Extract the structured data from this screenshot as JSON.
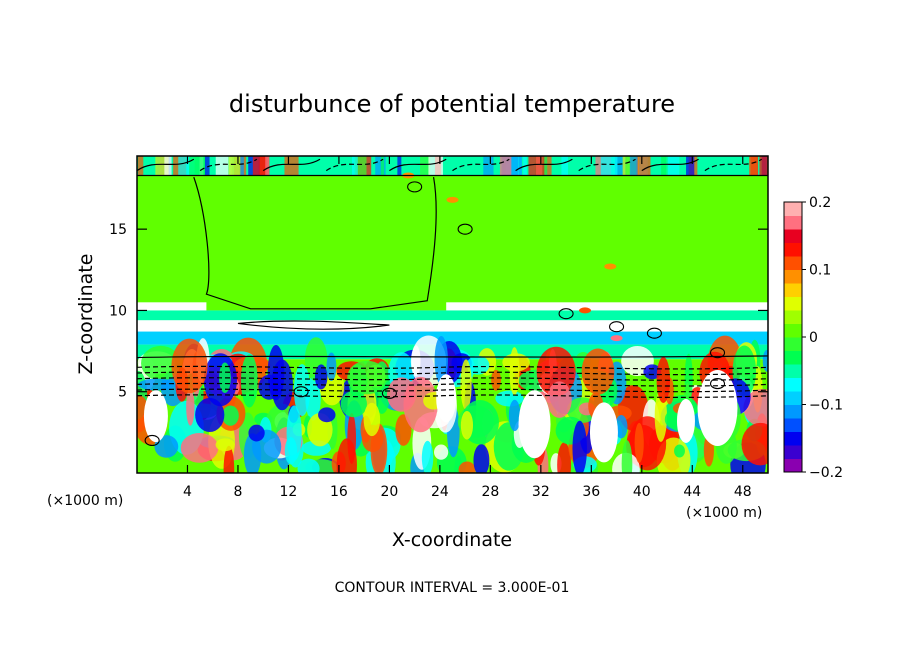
{
  "chart_data": {
    "type": "heatmap",
    "title": "disturbunce of potential temperature",
    "xlabel": "X-coordinate",
    "ylabel": "Z-coordinate",
    "x_unit": "(×1000 m)",
    "contour_note": "CONTOUR INTERVAL = 3.000E-01",
    "xlim": [
      0,
      50
    ],
    "ylim": [
      0,
      19.5
    ],
    "x_ticks": [
      4,
      8,
      12,
      16,
      20,
      24,
      28,
      32,
      36,
      40,
      44,
      48
    ],
    "y_ticks": [
      5,
      10,
      15
    ],
    "colorbar": {
      "range": [
        -0.2,
        0.2
      ],
      "ticks": [
        0.2,
        0.1,
        0,
        -0.1,
        -0.2
      ],
      "tick_labels": [
        "0.2",
        "0.1",
        "0",
        "−0.1",
        "−0.2"
      ],
      "colors": [
        "#8a00b0",
        "#3a00d0",
        "#0000f0",
        "#0050ff",
        "#0099ff",
        "#00d0ff",
        "#00ffff",
        "#00ffaa",
        "#00ff50",
        "#30ff30",
        "#60ff00",
        "#a0ff00",
        "#e0ff00",
        "#ffd000",
        "#ff9000",
        "#ff5000",
        "#ff1000",
        "#e80020",
        "#ff7080",
        "#ffb0b0"
      ]
    },
    "field_regions": [
      {
        "name": "upper-layer-band",
        "x": [
          0,
          50
        ],
        "z": [
          18.3,
          19.5
        ],
        "value": -0.05
      },
      {
        "name": "upper-green",
        "x": [
          0,
          50
        ],
        "z": [
          10.5,
          18.3
        ],
        "value": 0.0
      },
      {
        "name": "central-dome",
        "x": [
          5.5,
          24.5
        ],
        "z": [
          10,
          18.3
        ],
        "value": 0.02
      },
      {
        "name": "cyan-band-upper",
        "x": [
          0,
          50
        ],
        "z": [
          9.4,
          10.0
        ],
        "value": -0.06
      },
      {
        "name": "blue-band",
        "x": [
          0,
          50
        ],
        "z": [
          7.9,
          8.7
        ],
        "value": -0.1
      },
      {
        "name": "cyan-band-lower",
        "x": [
          0,
          50
        ],
        "z": [
          7.0,
          7.9
        ],
        "value": -0.06
      },
      {
        "name": "lower-turbulent-layer",
        "x": [
          0,
          50
        ],
        "z": [
          0,
          7.0
        ],
        "value": 0.0
      }
    ]
  }
}
